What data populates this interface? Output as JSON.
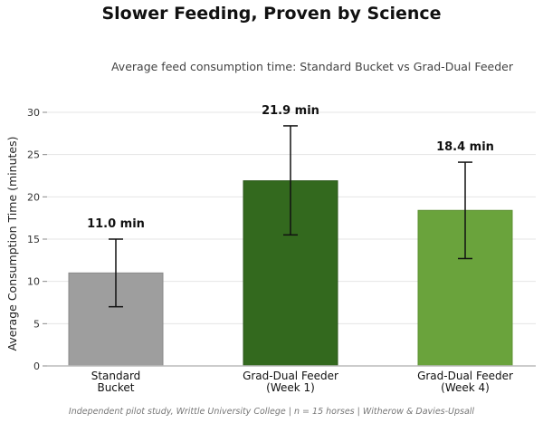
{
  "chart_data": {
    "type": "bar",
    "title": "Slower Feeding, Proven by Science",
    "subtitle": "Average feed consumption time: Standard Bucket vs Grad-Dual Feeder",
    "ylabel": "Average Consumption Time (minutes)",
    "xlabel": "",
    "ylim": [
      0,
      30
    ],
    "yticks": [
      0,
      5,
      10,
      15,
      20,
      25,
      30
    ],
    "grid": true,
    "categories": [
      [
        "Standard",
        "Bucket"
      ],
      [
        "Grad-Dual Feeder",
        "(Week 1)"
      ],
      [
        "Grad-Dual Feeder",
        "(Week 4)"
      ]
    ],
    "values": [
      11.0,
      21.9,
      18.4
    ],
    "error_low": [
      7.0,
      15.5,
      12.7
    ],
    "error_high": [
      15.0,
      28.4,
      24.1
    ],
    "data_labels": [
      "11.0 min",
      "21.9 min",
      "18.4 min"
    ],
    "colors": [
      "#9e9e9e",
      "#33691e",
      "#6aa33c"
    ],
    "edge_colors": [
      "#8a8a8a",
      "#2a5518",
      "#5c9032"
    ],
    "footnote": "Independent pilot study, Writtle University College  |  n = 15 horses  |  Witherow & Davies-Upsall"
  }
}
